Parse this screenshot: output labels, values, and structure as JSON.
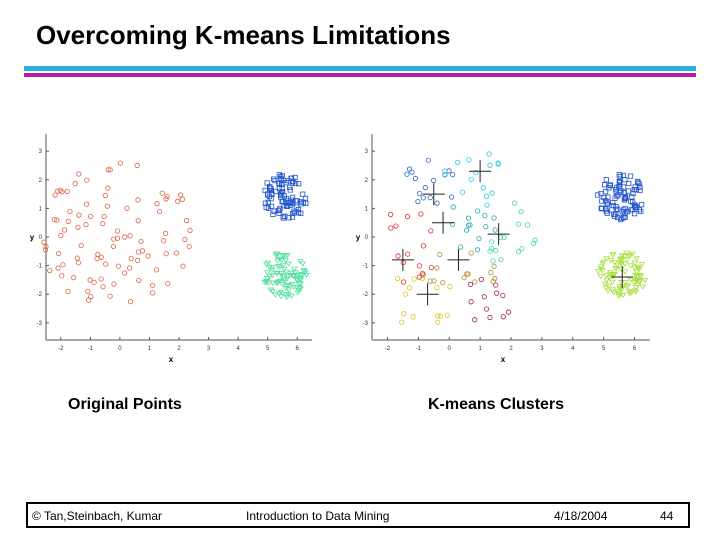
{
  "slide": {
    "title": "Overcoming K-means Limitations",
    "captions": {
      "original": "Original Points",
      "kmeans": "K-means Clusters"
    }
  },
  "footer": {
    "copyright": "© Tan,Steinbach, Kumar",
    "course": "Introduction to Data Mining",
    "date": "4/18/2004",
    "page": "44"
  },
  "colors": {
    "rule_top": "#29aee0",
    "rule_bottom": "#b51fa7"
  },
  "chart_data": [
    {
      "type": "scatter",
      "title": "",
      "xlabel": "x",
      "ylabel": "y",
      "xlim": [
        -2.5,
        6.5
      ],
      "ylim": [
        -3.6,
        3.6
      ],
      "x_ticks": [
        -2,
        -1,
        0,
        1,
        2,
        3,
        4,
        5,
        6
      ],
      "y_ticks": [
        3,
        2,
        1,
        0,
        -1,
        -2,
        -3
      ],
      "grid": false,
      "series": [
        {
          "marker": "circle",
          "color": "#e06040",
          "center": [
            0,
            0
          ],
          "spread": 2.7,
          "count": 95
        },
        {
          "marker": "square",
          "color": "#2255cc",
          "center": [
            5.6,
            1.4
          ],
          "spread": 0.8,
          "count": 90
        },
        {
          "marker": "triangle",
          "color": "#55e0a0",
          "center": [
            5.6,
            -1.3
          ],
          "spread": 0.8,
          "count": 90
        }
      ]
    },
    {
      "type": "scatter",
      "title": "",
      "xlabel": "x",
      "ylabel": "y",
      "xlim": [
        -2.5,
        6.5
      ],
      "ylim": [
        -3.6,
        3.6
      ],
      "x_ticks": [
        -2,
        -1,
        0,
        1,
        2,
        3,
        4,
        5,
        6
      ],
      "y_ticks": [
        3,
        2,
        1,
        0,
        -1,
        -2,
        -3
      ],
      "grid": false,
      "series": [
        {
          "marker": "circle",
          "color": "#2a66cc",
          "region": [
            -1.6,
            0.6,
            0.9,
            2.7
          ],
          "count": 16
        },
        {
          "marker": "circle",
          "color": "#22c8e0",
          "region": [
            -0.2,
            1.8,
            1.0,
            3.0
          ],
          "count": 14
        },
        {
          "marker": "circle",
          "color": "#20a8a8",
          "region": [
            0.0,
            1.6,
            -0.6,
            1.2
          ],
          "count": 14
        },
        {
          "marker": "circle",
          "color": "#40d8a0",
          "region": [
            1.2,
            2.8,
            -1.0,
            1.2
          ],
          "count": 16
        },
        {
          "marker": "circle",
          "color": "#e03030",
          "region": [
            -2.0,
            -0.4,
            -1.6,
            1.0
          ],
          "count": 16
        },
        {
          "marker": "circle",
          "color": "#b09030",
          "region": [
            -0.8,
            1.6,
            -1.6,
            -0.2
          ],
          "count": 14
        },
        {
          "marker": "circle",
          "color": "#e0c020",
          "region": [
            -1.8,
            0.4,
            -3.0,
            -1.4
          ],
          "count": 14
        },
        {
          "marker": "circle",
          "color": "#a02050",
          "region": [
            0.6,
            2.2,
            -3.0,
            -1.4
          ],
          "count": 12
        },
        {
          "marker": "square",
          "color": "#2255cc",
          "center": [
            5.6,
            1.4
          ],
          "spread": 0.8,
          "count": 90
        },
        {
          "marker": "triangle",
          "color": "#a8e040",
          "center": [
            5.6,
            -1.3
          ],
          "spread": 0.8,
          "count": 90
        }
      ],
      "centroids": [
        [
          -0.5,
          1.5
        ],
        [
          1.0,
          2.3
        ],
        [
          -0.2,
          0.5
        ],
        [
          1.6,
          0.1
        ],
        [
          -1.5,
          -0.8
        ],
        [
          0.3,
          -0.8
        ],
        [
          -0.7,
          -2.0
        ],
        [
          5.6,
          -1.4
        ]
      ]
    }
  ]
}
